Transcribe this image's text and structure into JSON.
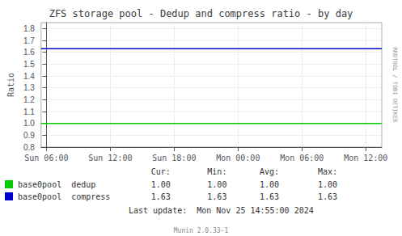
{
  "chart_data": {
    "type": "line",
    "title": "ZFS storage pool - Dedup and compress ratio - by day",
    "ylabel": "Ratio",
    "x": [
      -0.5,
      31.5
    ],
    "xlim": [
      -0.5,
      31.5
    ],
    "xticks": [
      {
        "value": 0,
        "label": "Sun 06:00"
      },
      {
        "value": 6,
        "label": "Sun 12:00"
      },
      {
        "value": 12,
        "label": "Sun 18:00"
      },
      {
        "value": 18,
        "label": "Mon 00:00"
      },
      {
        "value": 24,
        "label": "Mon 06:00"
      },
      {
        "value": 30,
        "label": "Mon 12:00"
      }
    ],
    "ylim": [
      0.8,
      1.85
    ],
    "yticks": [
      0.8,
      0.9,
      {
        "value": 1,
        "label": "1.0"
      },
      1.1,
      1.2,
      1.3,
      1.4,
      1.5,
      1.6,
      1.7,
      1.8
    ],
    "grid": true,
    "legend": "bottom",
    "stats_header": [
      "Cur:",
      "Min:",
      "Avg:",
      "Max:"
    ],
    "series": [
      {
        "name": "base0pool  dedup",
        "color": "#00cc00",
        "values": [
          1,
          1
        ],
        "stats": [
          "1.00",
          "1.00",
          "1.00",
          "1.00"
        ]
      },
      {
        "name": "base0pool  compress",
        "color": "#0000cc",
        "values": [
          1.63,
          1.63
        ],
        "stats": [
          "1.63",
          "1.63",
          "1.63",
          "1.63"
        ]
      }
    ],
    "annotations": [
      "Last update:  Mon Nov 25 14:55:00 2024",
      "Munin 2.0.33-1",
      "RRDTOOL / TOBI OETIKER"
    ]
  }
}
